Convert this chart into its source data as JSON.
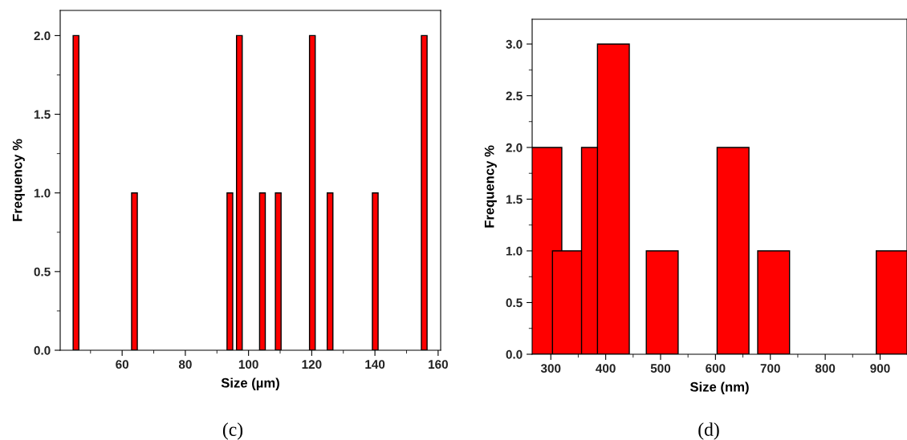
{
  "chart_data": [
    {
      "type": "bar",
      "xlabel": "Size (µm)",
      "ylabel": "Frequency %",
      "annotations": [
        "(c)"
      ],
      "x": [
        45.4,
        63.9,
        94.1,
        97.1,
        104.4,
        109.4,
        120.2,
        125.8,
        140.1,
        155.6
      ],
      "values": [
        2,
        1,
        1,
        2,
        1,
        1,
        2,
        1,
        1,
        2
      ],
      "color": "#ff0000",
      "xlim": [
        40.4,
        160.8
      ],
      "xticks": [
        60,
        80,
        100,
        120,
        140,
        160
      ],
      "ylim": [
        0,
        2.16
      ],
      "yticks": [
        {
          "value": 0,
          "label": "0.0"
        },
        {
          "value": 0.5,
          "label": "0.5"
        },
        {
          "value": 1,
          "label": "1.0"
        },
        {
          "value": 1.5,
          "label": "1.5"
        },
        {
          "value": 2,
          "label": "2.0"
        }
      ],
      "grid": false,
      "legend": false
    },
    {
      "type": "bar",
      "xlabel": "Size (nm)",
      "ylabel": "Frequency %",
      "annotations": [
        "(d)"
      ],
      "x": [
        291,
        332,
        385,
        414,
        503,
        632,
        706,
        922
      ],
      "values": [
        2,
        1,
        2,
        3,
        1,
        2,
        1,
        1
      ],
      "color": "#ff0000",
      "xlim": [
        266,
        949
      ],
      "xticks": [
        300,
        400,
        500,
        600,
        700,
        800,
        900
      ],
      "ylim": [
        0,
        3.24
      ],
      "yticks": [
        {
          "value": 0,
          "label": "0.0"
        },
        {
          "value": 0.5,
          "label": "0.5"
        },
        {
          "value": 1,
          "label": "1.0"
        },
        {
          "value": 1.5,
          "label": "1.5"
        },
        {
          "value": 2,
          "label": "2.0"
        },
        {
          "value": 2.5,
          "label": "2.5"
        },
        {
          "value": 3,
          "label": "3.0"
        }
      ],
      "grid": false,
      "legend": false
    }
  ]
}
